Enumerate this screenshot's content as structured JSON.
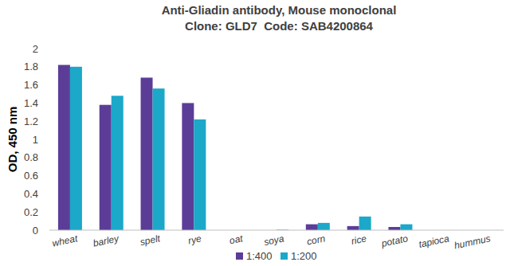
{
  "chart_data": {
    "type": "bar",
    "title": "Anti-Gliadin antibody, Mouse monoclonal",
    "subtitle": "Clone: GLD7  Code: SAB4200864",
    "y_label": "OD, 450 nm",
    "categories": [
      "wheat",
      "barley",
      "spelt",
      "rye",
      "oat",
      "soya",
      "corn",
      "rice",
      "potato",
      "tapioca",
      "hummus"
    ],
    "series": [
      {
        "name": "1:400",
        "color": "#5b3d97",
        "values": [
          1.82,
          1.38,
          1.68,
          1.4,
          0,
          0,
          0.065,
          0.045,
          0.035,
          0,
          0
        ]
      },
      {
        "name": "1:200",
        "color": "#1ba8c9",
        "values": [
          1.8,
          1.48,
          1.56,
          1.22,
          0,
          0.005,
          0.08,
          0.15,
          0.065,
          0,
          0
        ]
      }
    ],
    "ylim": [
      0,
      2
    ],
    "yticks": [
      0,
      0.2,
      0.4,
      0.6,
      0.8,
      1,
      1.2,
      1.4,
      1.6,
      1.8,
      2
    ],
    "grid": false,
    "legend": "bottom"
  }
}
